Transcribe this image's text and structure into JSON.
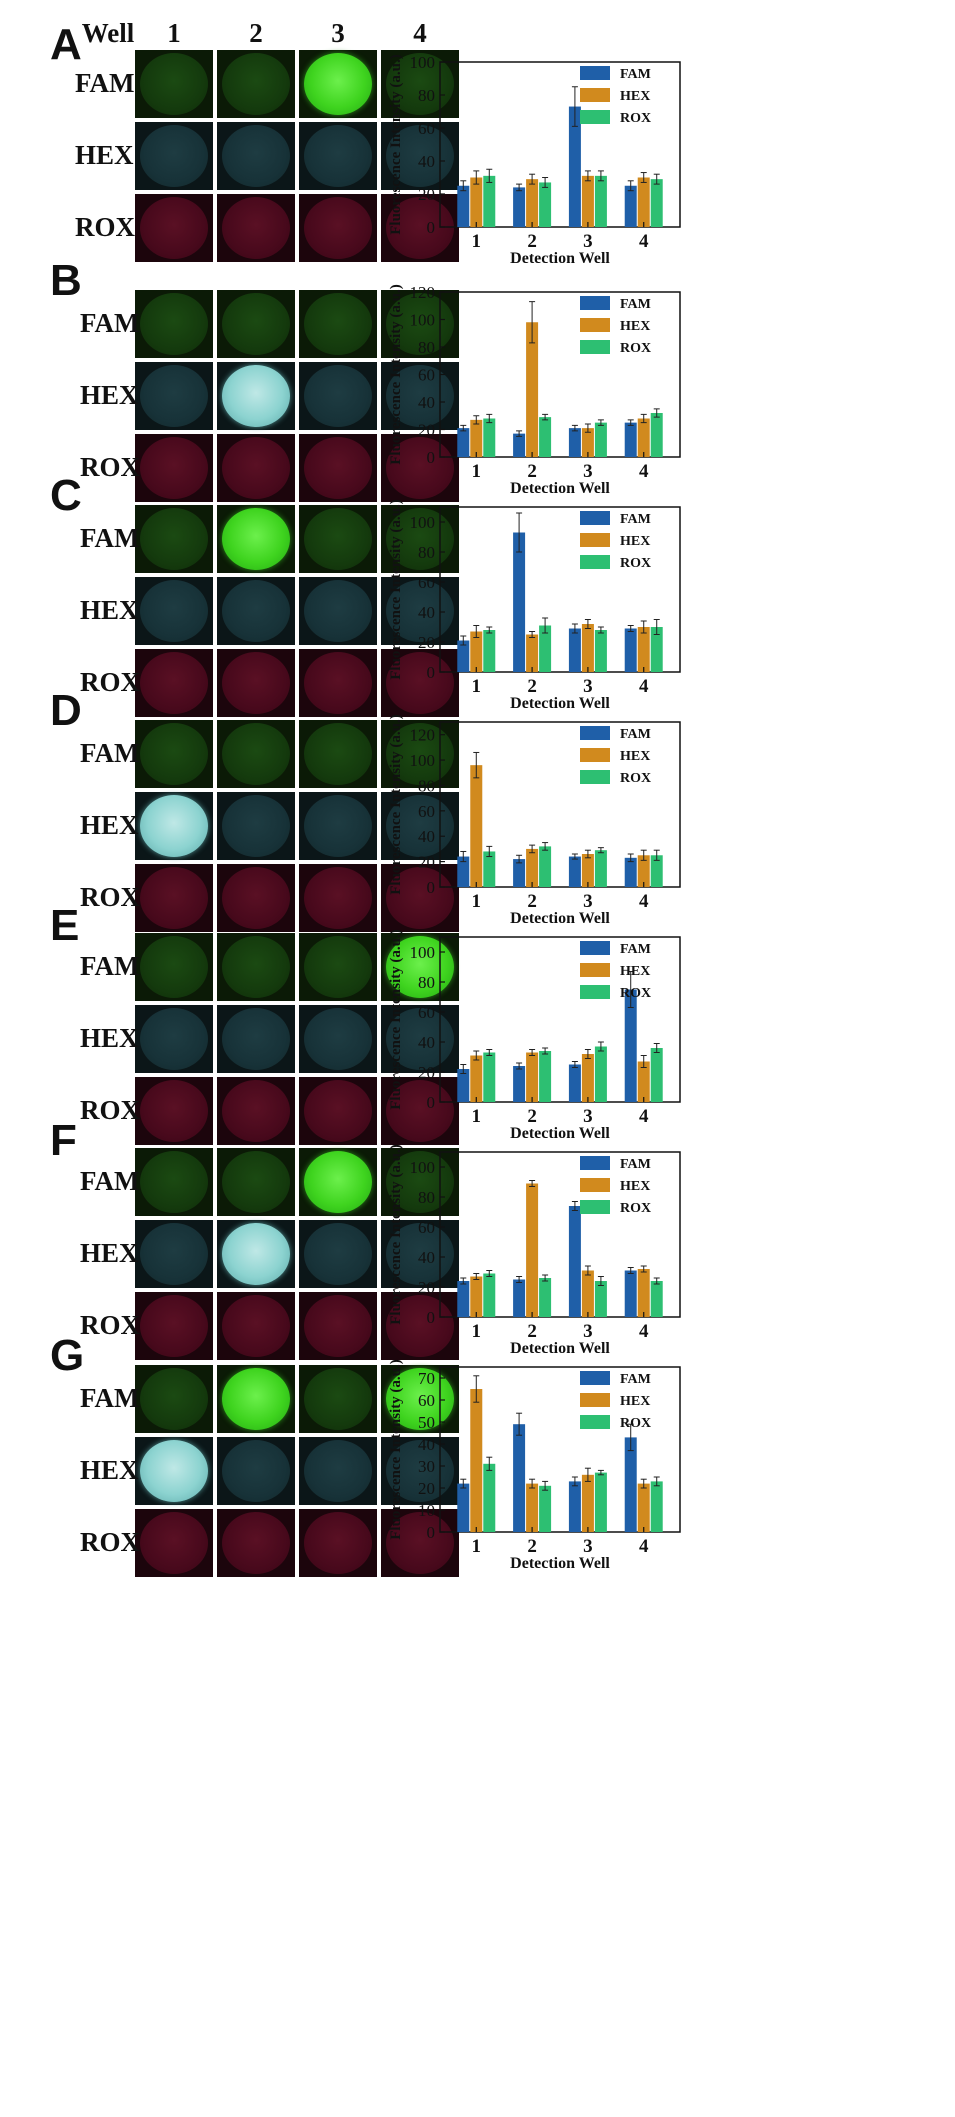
{
  "header": {
    "well_label": "Well",
    "columns": [
      "1",
      "2",
      "3",
      "4"
    ]
  },
  "channels": [
    "FAM",
    "HEX",
    "ROX"
  ],
  "colors": {
    "FAM": "#1f5fa8",
    "HEX": "#d18a1e",
    "ROX": "#2dbf72"
  },
  "chart_common": {
    "type": "bar",
    "categories": [
      "1",
      "2",
      "3",
      "4"
    ],
    "xlabel": "Detection Well",
    "ylabel": "Fluorescence Intensity (a.u.)",
    "legend": [
      "FAM",
      "HEX",
      "ROX"
    ],
    "legend_position": "top-right",
    "error_bars": true,
    "grid": false
  },
  "panels": [
    {
      "letter": "A",
      "bright": {
        "FAM": [
          false,
          false,
          true,
          false
        ],
        "HEX": [
          false,
          false,
          false,
          false
        ]
      }
    },
    {
      "letter": "B",
      "bright": {
        "FAM": [
          false,
          false,
          false,
          false
        ],
        "HEX": [
          false,
          true,
          false,
          false
        ]
      }
    },
    {
      "letter": "C",
      "bright": {
        "FAM": [
          false,
          true,
          false,
          false
        ],
        "HEX": [
          false,
          false,
          false,
          false
        ]
      }
    },
    {
      "letter": "D",
      "bright": {
        "FAM": [
          false,
          false,
          false,
          false
        ],
        "HEX": [
          true,
          false,
          false,
          false
        ]
      }
    },
    {
      "letter": "E",
      "bright": {
        "FAM": [
          false,
          false,
          false,
          true
        ],
        "HEX": [
          false,
          false,
          false,
          false
        ]
      }
    },
    {
      "letter": "F",
      "bright": {
        "FAM": [
          false,
          false,
          true,
          false
        ],
        "HEX": [
          false,
          true,
          false,
          false
        ]
      }
    },
    {
      "letter": "G",
      "bright": {
        "FAM": [
          false,
          true,
          false,
          true
        ],
        "HEX": [
          true,
          false,
          false,
          false
        ]
      }
    }
  ],
  "chart_data": [
    {
      "type": "bar",
      "categories": [
        "1",
        "2",
        "3",
        "4"
      ],
      "xlabel": "Detection Well",
      "ylabel": "Fluorescence Intensity (a.u.)",
      "ylim": [
        0,
        100
      ],
      "yticks": [
        0,
        20,
        40,
        60,
        80,
        100
      ],
      "series": [
        {
          "name": "FAM",
          "values": [
            25,
            24,
            73,
            25
          ],
          "errors": [
            3,
            2,
            12,
            3
          ]
        },
        {
          "name": "HEX",
          "values": [
            30,
            29,
            31,
            30
          ],
          "errors": [
            4,
            3,
            3,
            3
          ]
        },
        {
          "name": "ROX",
          "values": [
            31,
            27,
            31,
            29
          ],
          "errors": [
            4,
            3,
            3,
            3
          ]
        }
      ]
    },
    {
      "type": "bar",
      "categories": [
        "1",
        "2",
        "3",
        "4"
      ],
      "xlabel": "Detection Well",
      "ylabel": "Fluorescence Intensity (a.u.)",
      "ylim": [
        0,
        120
      ],
      "yticks": [
        0,
        20,
        40,
        60,
        80,
        100,
        120
      ],
      "series": [
        {
          "name": "FAM",
          "values": [
            21,
            17,
            21,
            25
          ],
          "errors": [
            2,
            2,
            2,
            2
          ]
        },
        {
          "name": "HEX",
          "values": [
            27,
            98,
            21,
            28
          ],
          "errors": [
            3,
            15,
            3,
            3
          ]
        },
        {
          "name": "ROX",
          "values": [
            28,
            29,
            25,
            32
          ],
          "errors": [
            3,
            2,
            2,
            3
          ]
        }
      ]
    },
    {
      "type": "bar",
      "categories": [
        "1",
        "2",
        "3",
        "4"
      ],
      "xlabel": "Detection Well",
      "ylabel": "Fluorescence Intensity (a.u.)",
      "ylim": [
        0,
        110
      ],
      "yticks": [
        0,
        20,
        40,
        60,
        80,
        100
      ],
      "series": [
        {
          "name": "FAM",
          "values": [
            21,
            93,
            29,
            29
          ],
          "errors": [
            3,
            13,
            3,
            2
          ]
        },
        {
          "name": "HEX",
          "values": [
            27,
            25,
            32,
            30
          ],
          "errors": [
            4,
            2,
            3,
            4
          ]
        },
        {
          "name": "ROX",
          "values": [
            28,
            31,
            28,
            30
          ],
          "errors": [
            2,
            5,
            2,
            5
          ]
        }
      ]
    },
    {
      "type": "bar",
      "categories": [
        "1",
        "2",
        "3",
        "4"
      ],
      "xlabel": "Detection Well",
      "ylabel": "Fluorescence Intensity (a.u.)",
      "ylim": [
        0,
        130
      ],
      "yticks": [
        0,
        20,
        40,
        60,
        80,
        100,
        120
      ],
      "series": [
        {
          "name": "FAM",
          "values": [
            24,
            22,
            24,
            23
          ],
          "errors": [
            4,
            3,
            2,
            3
          ]
        },
        {
          "name": "HEX",
          "values": [
            96,
            30,
            26,
            25
          ],
          "errors": [
            10,
            3,
            3,
            4
          ]
        },
        {
          "name": "ROX",
          "values": [
            28,
            32,
            29,
            25
          ],
          "errors": [
            4,
            3,
            2,
            4
          ]
        }
      ]
    },
    {
      "type": "bar",
      "categories": [
        "1",
        "2",
        "3",
        "4"
      ],
      "xlabel": "Detection Well",
      "ylabel": "Fluorescence Intensity (a.u.)",
      "ylim": [
        0,
        110
      ],
      "yticks": [
        0,
        20,
        40,
        60,
        80,
        100
      ],
      "series": [
        {
          "name": "FAM",
          "values": [
            22,
            24,
            25,
            75
          ],
          "errors": [
            3,
            2,
            2,
            12
          ]
        },
        {
          "name": "HEX",
          "values": [
            31,
            33,
            32,
            27
          ],
          "errors": [
            3,
            2,
            3,
            4
          ]
        },
        {
          "name": "ROX",
          "values": [
            33,
            34,
            37,
            36
          ],
          "errors": [
            2,
            2,
            3,
            3
          ]
        }
      ]
    },
    {
      "type": "bar",
      "categories": [
        "1",
        "2",
        "3",
        "4"
      ],
      "xlabel": "Detection Well",
      "ylabel": "Fluorescence Intensity (a.u.)",
      "ylim": [
        0,
        110
      ],
      "yticks": [
        0,
        20,
        40,
        60,
        80,
        100
      ],
      "series": [
        {
          "name": "FAM",
          "values": [
            24,
            25,
            74,
            31
          ],
          "errors": [
            2,
            2,
            3,
            2
          ]
        },
        {
          "name": "HEX",
          "values": [
            27,
            89,
            31,
            32
          ],
          "errors": [
            2,
            2,
            3,
            2
          ]
        },
        {
          "name": "ROX",
          "values": [
            29,
            26,
            24,
            24
          ],
          "errors": [
            2,
            2,
            3,
            2
          ]
        }
      ]
    },
    {
      "type": "bar",
      "categories": [
        "1",
        "2",
        "3",
        "4"
      ],
      "xlabel": "Detection Well",
      "ylabel": "Fluorescence Intensity (a.u.)",
      "ylim": [
        0,
        75
      ],
      "yticks": [
        0,
        10,
        20,
        30,
        40,
        50,
        60,
        70
      ],
      "series": [
        {
          "name": "FAM",
          "values": [
            22,
            49,
            23,
            43
          ],
          "errors": [
            2,
            5,
            2,
            6
          ]
        },
        {
          "name": "HEX",
          "values": [
            65,
            22,
            26,
            22
          ],
          "errors": [
            6,
            2,
            3,
            2
          ]
        },
        {
          "name": "ROX",
          "values": [
            31,
            21,
            27,
            23
          ],
          "errors": [
            3,
            2,
            1,
            2
          ]
        }
      ]
    }
  ]
}
